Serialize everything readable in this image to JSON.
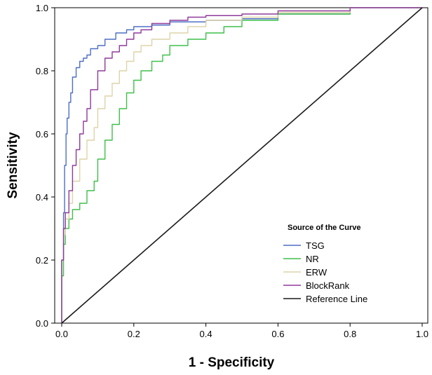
{
  "chart_data": {
    "type": "line",
    "xlabel": "1 - Specificity",
    "ylabel": "Sensitivity",
    "xlim": [
      0,
      1
    ],
    "ylim": [
      0,
      1
    ],
    "x_ticks": [
      "0.0",
      "0.2",
      "0.4",
      "0.6",
      "0.8",
      "1.0"
    ],
    "y_ticks": [
      "0.0",
      "0.2",
      "0.4",
      "0.6",
      "0.8",
      "1.0"
    ],
    "grid": false,
    "legend": {
      "title": "Source of the Curve",
      "placement": "bottom-right"
    },
    "series": [
      {
        "name": "TSG",
        "color": "#4e6fc4",
        "x": [
          0,
          0.005,
          0.008,
          0.012,
          0.015,
          0.02,
          0.025,
          0.03,
          0.04,
          0.05,
          0.06,
          0.07,
          0.08,
          0.1,
          0.12,
          0.15,
          0.18,
          0.2,
          0.25,
          0.3,
          0.4,
          0.5,
          0.6,
          0.8,
          1.0
        ],
        "y": [
          0,
          0.2,
          0.35,
          0.5,
          0.6,
          0.65,
          0.7,
          0.73,
          0.78,
          0.81,
          0.83,
          0.84,
          0.85,
          0.87,
          0.88,
          0.9,
          0.92,
          0.93,
          0.94,
          0.945,
          0.955,
          0.96,
          0.965,
          0.98,
          1.0
        ]
      },
      {
        "name": "NR",
        "color": "#3fbf4a",
        "x": [
          0,
          0.005,
          0.01,
          0.02,
          0.03,
          0.05,
          0.07,
          0.09,
          0.1,
          0.12,
          0.14,
          0.16,
          0.18,
          0.2,
          0.22,
          0.25,
          0.28,
          0.3,
          0.35,
          0.4,
          0.45,
          0.5,
          0.6,
          0.8,
          1.0
        ],
        "y": [
          0,
          0.15,
          0.25,
          0.3,
          0.33,
          0.36,
          0.38,
          0.42,
          0.45,
          0.52,
          0.58,
          0.63,
          0.68,
          0.73,
          0.77,
          0.8,
          0.83,
          0.85,
          0.88,
          0.9,
          0.92,
          0.94,
          0.96,
          0.98,
          1.0
        ]
      },
      {
        "name": "ERW",
        "color": "#ddd4a8",
        "x": [
          0,
          0.005,
          0.01,
          0.02,
          0.03,
          0.05,
          0.07,
          0.09,
          0.1,
          0.12,
          0.14,
          0.16,
          0.18,
          0.2,
          0.22,
          0.25,
          0.3,
          0.35,
          0.4,
          0.5,
          0.6,
          0.8,
          1.0
        ],
        "y": [
          0,
          0.2,
          0.28,
          0.33,
          0.38,
          0.45,
          0.52,
          0.58,
          0.62,
          0.68,
          0.72,
          0.76,
          0.8,
          0.83,
          0.86,
          0.88,
          0.9,
          0.92,
          0.94,
          0.96,
          0.97,
          0.985,
          1.0
        ]
      },
      {
        "name": "BlockRank",
        "color": "#8e3a9a",
        "x": [
          0,
          0.005,
          0.01,
          0.02,
          0.03,
          0.04,
          0.05,
          0.06,
          0.07,
          0.08,
          0.1,
          0.12,
          0.14,
          0.16,
          0.18,
          0.2,
          0.22,
          0.25,
          0.3,
          0.35,
          0.4,
          0.5,
          0.6,
          0.8,
          1.0
        ],
        "y": [
          0,
          0.2,
          0.3,
          0.35,
          0.42,
          0.5,
          0.55,
          0.6,
          0.64,
          0.68,
          0.74,
          0.8,
          0.84,
          0.86,
          0.88,
          0.9,
          0.92,
          0.93,
          0.95,
          0.96,
          0.97,
          0.975,
          0.98,
          0.99,
          1.0
        ]
      },
      {
        "name": "Reference Line",
        "color": "#1a1a1a",
        "x": [
          0,
          1
        ],
        "y": [
          0,
          1
        ]
      }
    ]
  }
}
